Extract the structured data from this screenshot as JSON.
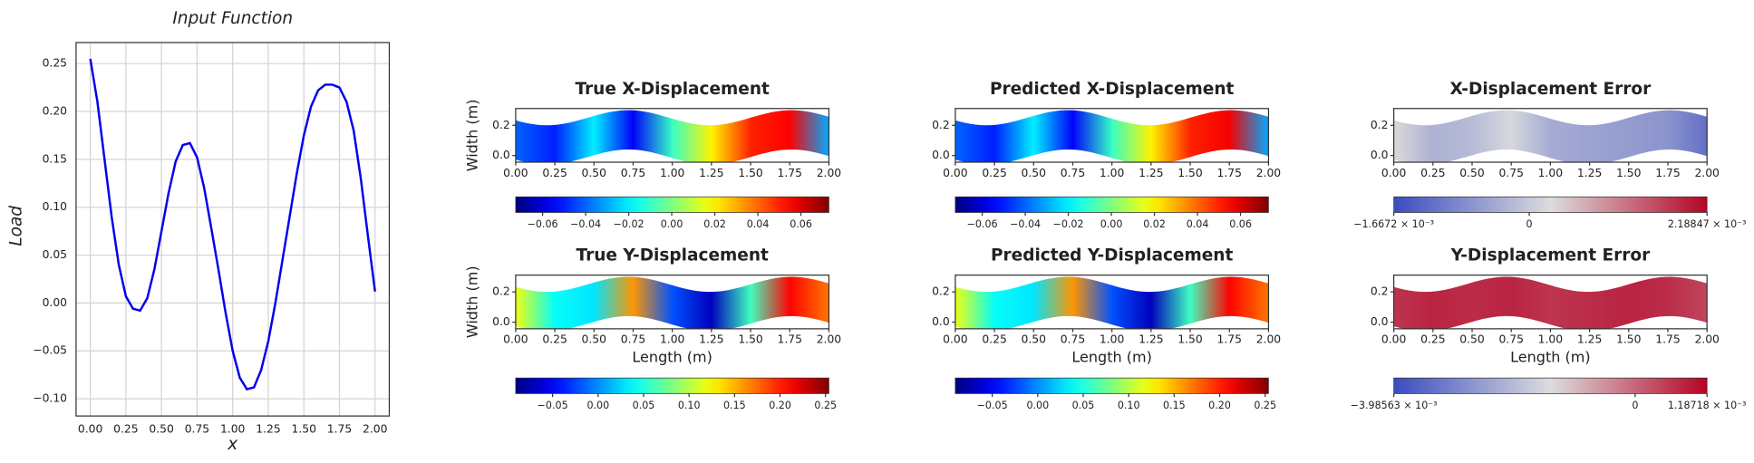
{
  "chart_data": [
    {
      "type": "line",
      "title": "Input Function",
      "xlabel": "x",
      "ylabel": "Load",
      "color": "#0000ee",
      "grid": true,
      "x": [
        0,
        0.05,
        0.1,
        0.15,
        0.2,
        0.25,
        0.3,
        0.35,
        0.4,
        0.45,
        0.5,
        0.55,
        0.6,
        0.65,
        0.7,
        0.75,
        0.8,
        0.85,
        0.9,
        0.95,
        1.0,
        1.05,
        1.1,
        1.15,
        1.2,
        1.25,
        1.3,
        1.35,
        1.4,
        1.45,
        1.5,
        1.55,
        1.6,
        1.65,
        1.7,
        1.75,
        1.8,
        1.85,
        1.9,
        1.95,
        2.0
      ],
      "values": [
        0.255,
        0.21,
        0.15,
        0.09,
        0.04,
        0.007,
        -0.006,
        -0.008,
        0.005,
        0.035,
        0.075,
        0.115,
        0.148,
        0.165,
        0.167,
        0.152,
        0.12,
        0.078,
        0.035,
        -0.01,
        -0.05,
        -0.078,
        -0.09,
        -0.088,
        -0.07,
        -0.04,
        0.0,
        0.045,
        0.09,
        0.135,
        0.175,
        0.205,
        0.222,
        0.228,
        0.228,
        0.225,
        0.21,
        0.18,
        0.13,
        0.07,
        0.012
      ],
      "xlim": [
        -0.1,
        2.1
      ],
      "ylim": [
        -0.118,
        0.272
      ],
      "xticks": [
        {
          "value": 0,
          "label": "0.00"
        },
        0.25,
        {
          "value": 0.5,
          "label": "0.50"
        },
        0.75,
        {
          "value": 1,
          "label": "1.00"
        },
        1.25,
        {
          "value": 1.5,
          "label": "1.50"
        },
        1.75,
        {
          "value": 2,
          "label": "2.00"
        }
      ],
      "yticks": [
        {
          "value": -0.1,
          "label": "−0.10"
        },
        {
          "value": -0.05,
          "label": "−0.05"
        },
        {
          "value": 0,
          "label": "0.00"
        },
        0.05,
        {
          "value": 0.1,
          "label": "0.10"
        },
        0.15,
        {
          "value": 0.2,
          "label": "0.20"
        },
        0.25
      ]
    },
    {
      "type": "heatmap",
      "title": "True X-Displacement",
      "ylabel": "Width (m)",
      "colormap": "jet",
      "x": [
        0,
        0.25,
        0.5,
        0.75,
        1,
        1.25,
        1.5,
        1.75,
        2
      ],
      "values": [
        -0.04,
        -0.05,
        -0.02,
        -0.055,
        -0.01,
        0.02,
        0.05,
        0.055,
        -0.03
      ],
      "xlim": [
        0,
        2
      ],
      "ylim": [
        -0.044,
        0.311
      ],
      "xticks": [
        {
          "value": 0,
          "label": "0.00"
        },
        0.25,
        {
          "value": 0.5,
          "label": "0.50"
        },
        0.75,
        {
          "value": 1,
          "label": "1.00"
        },
        1.25,
        {
          "value": 1.5,
          "label": "1.50"
        },
        1.75,
        {
          "value": 2,
          "label": "2.00"
        }
      ],
      "yticks": [
        {
          "value": 0,
          "label": "0.0"
        },
        0.2
      ],
      "clim": [
        -0.0725,
        0.073
      ],
      "cticks": [
        {
          "value": -0.06,
          "label": "−0.06"
        },
        {
          "value": -0.04,
          "label": "−0.04"
        },
        {
          "value": -0.02,
          "label": "−0.02"
        },
        {
          "value": 0,
          "label": "0.00"
        },
        0.02,
        0.04,
        0.06
      ]
    },
    {
      "type": "heatmap",
      "title": "Predicted X-Displacement",
      "colormap": "jet",
      "x": [
        0,
        0.25,
        0.5,
        0.75,
        1,
        1.25,
        1.5,
        1.75,
        2
      ],
      "values": [
        -0.04,
        -0.05,
        -0.02,
        -0.055,
        -0.01,
        0.02,
        0.05,
        0.056,
        -0.03
      ],
      "xlim": [
        0,
        2
      ],
      "ylim": [
        -0.044,
        0.311
      ],
      "xticks": [
        {
          "value": 0,
          "label": "0.00"
        },
        0.25,
        {
          "value": 0.5,
          "label": "0.50"
        },
        0.75,
        {
          "value": 1,
          "label": "1.00"
        },
        1.25,
        {
          "value": 1.5,
          "label": "1.50"
        },
        1.75,
        {
          "value": 2,
          "label": "2.00"
        }
      ],
      "yticks": [
        {
          "value": 0,
          "label": "0.0"
        },
        0.2
      ],
      "clim": [
        -0.0725,
        0.073
      ],
      "cticks": [
        {
          "value": -0.06,
          "label": "−0.06"
        },
        {
          "value": -0.04,
          "label": "−0.04"
        },
        {
          "value": -0.02,
          "label": "−0.02"
        },
        {
          "value": 0,
          "label": "0.00"
        },
        0.02,
        0.04,
        0.06
      ]
    },
    {
      "type": "heatmap",
      "title": "X-Displacement Error",
      "colormap": "coolwarm",
      "x": [
        0,
        0.25,
        0.5,
        0.75,
        1,
        1.25,
        1.5,
        1.75,
        2
      ],
      "values": [
        0.0003,
        -0.0003,
        -0.0002,
        0.0002,
        -0.0004,
        -0.0005,
        -0.0006,
        -0.0007,
        -0.0012
      ],
      "xlim": [
        0,
        2
      ],
      "ylim": [
        -0.044,
        0.311
      ],
      "xticks": [
        {
          "value": 0,
          "label": "0.00"
        },
        0.25,
        {
          "value": 0.5,
          "label": "0.50"
        },
        0.75,
        {
          "value": 1,
          "label": "1.00"
        },
        1.25,
        {
          "value": 1.5,
          "label": "1.50"
        },
        1.75,
        {
          "value": 2,
          "label": "2.00"
        }
      ],
      "yticks": [
        {
          "value": 0,
          "label": "0.0"
        },
        0.2
      ],
      "clim": [
        -0.0016672,
        0.00218847
      ],
      "cticks": [
        {
          "value": -0.0016672,
          "label": "−1.6672 × 10⁻³"
        },
        0,
        {
          "value": 0.00218847,
          "label": "2.18847 × 10⁻³"
        }
      ]
    },
    {
      "type": "heatmap",
      "title": "True Y-Displacement",
      "xlabel": "Length (m)",
      "ylabel": "Width (m)",
      "colormap": "jet",
      "x": [
        0,
        0.25,
        0.5,
        0.75,
        1,
        1.25,
        1.5,
        1.75,
        2
      ],
      "values": [
        0.12,
        0.04,
        0.03,
        0.16,
        -0.02,
        -0.07,
        0.06,
        0.21,
        0.17
      ],
      "xlim": [
        0,
        2
      ],
      "ylim": [
        -0.044,
        0.311
      ],
      "xticks": [
        {
          "value": 0,
          "label": "0.00"
        },
        0.25,
        {
          "value": 0.5,
          "label": "0.50"
        },
        0.75,
        {
          "value": 1,
          "label": "1.00"
        },
        1.25,
        {
          "value": 1.5,
          "label": "1.50"
        },
        1.75,
        {
          "value": 2,
          "label": "2.00"
        }
      ],
      "yticks": [
        {
          "value": 0,
          "label": "0.0"
        },
        0.2
      ],
      "clim": [
        -0.0906,
        0.2537
      ],
      "cticks": [
        {
          "value": -0.05,
          "label": "−0.05"
        },
        {
          "value": 0,
          "label": "0.00"
        },
        0.05,
        {
          "value": 0.1,
          "label": "0.10"
        },
        0.15,
        {
          "value": 0.2,
          "label": "0.20"
        },
        0.25
      ]
    },
    {
      "type": "heatmap",
      "title": "Predicted Y-Displacement",
      "xlabel": "Length (m)",
      "colormap": "jet",
      "x": [
        0,
        0.25,
        0.5,
        0.75,
        1,
        1.25,
        1.5,
        1.75,
        2
      ],
      "values": [
        0.12,
        0.04,
        0.03,
        0.16,
        -0.02,
        -0.07,
        0.06,
        0.21,
        0.17
      ],
      "xlim": [
        0,
        2
      ],
      "ylim": [
        -0.044,
        0.311
      ],
      "xticks": [
        {
          "value": 0,
          "label": "0.00"
        },
        0.25,
        {
          "value": 0.5,
          "label": "0.50"
        },
        0.75,
        {
          "value": 1,
          "label": "1.00"
        },
        1.25,
        {
          "value": 1.5,
          "label": "1.50"
        },
        1.75,
        {
          "value": 2,
          "label": "2.00"
        }
      ],
      "yticks": [
        {
          "value": 0,
          "label": "0.0"
        },
        0.2
      ],
      "clim": [
        -0.0906,
        0.2537
      ],
      "cticks": [
        {
          "value": -0.05,
          "label": "−0.05"
        },
        {
          "value": 0,
          "label": "0.00"
        },
        0.05,
        {
          "value": 0.1,
          "label": "0.10"
        },
        0.15,
        {
          "value": 0.2,
          "label": "0.20"
        },
        0.25
      ]
    },
    {
      "type": "heatmap",
      "title": "Y-Displacement Error",
      "xlabel": "Length (m)",
      "colormap": "coolwarm",
      "x": [
        0,
        0.25,
        0.5,
        0.75,
        1,
        1.25,
        1.5,
        1.75,
        2
      ],
      "values": [
        0.0006,
        0.0008,
        0.0007,
        0.0008,
        0.0006,
        0.0007,
        0.0008,
        0.0007,
        0.0004
      ],
      "xlim": [
        0,
        2
      ],
      "ylim": [
        -0.044,
        0.311
      ],
      "xticks": [
        {
          "value": 0,
          "label": "0.00"
        },
        0.25,
        {
          "value": 0.5,
          "label": "0.50"
        },
        0.75,
        {
          "value": 1,
          "label": "1.00"
        },
        1.25,
        {
          "value": 1.5,
          "label": "1.50"
        },
        1.75,
        {
          "value": 2,
          "label": "2.00"
        }
      ],
      "yticks": [
        {
          "value": 0,
          "label": "0.0"
        },
        0.2
      ],
      "clim": [
        -0.00398563,
        0.00118718
      ],
      "cticks": [
        {
          "value": -0.00398563,
          "label": "−3.98563 × 10⁻³"
        },
        0,
        {
          "value": 0.00118718,
          "label": "1.18718 × 10⁻³"
        }
      ]
    }
  ]
}
